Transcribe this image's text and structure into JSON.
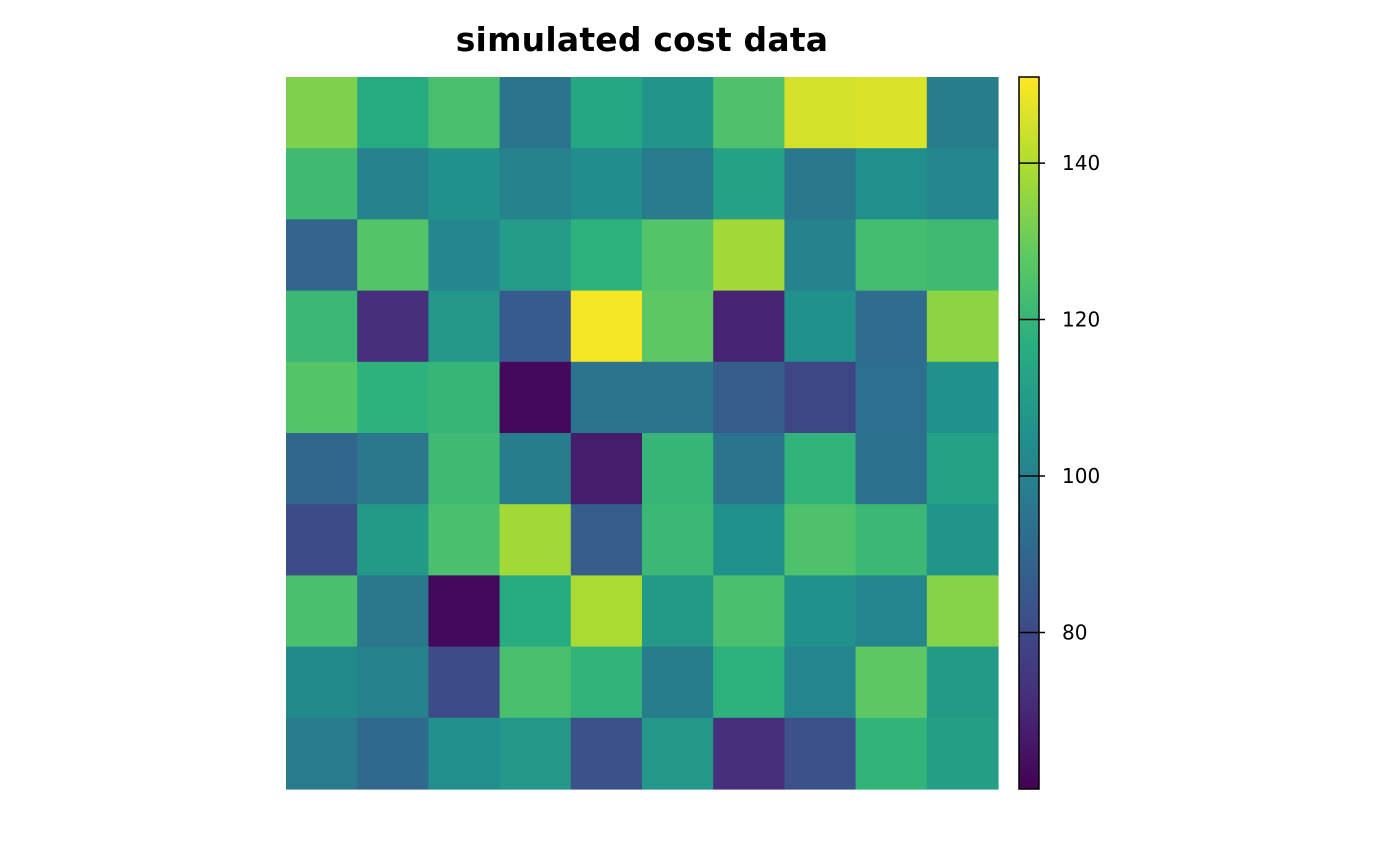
{
  "chart_data": {
    "type": "heatmap",
    "title": "simulated cost data",
    "rows": 10,
    "cols": 10,
    "values": [
      [
        133,
        116,
        124,
        95,
        114,
        107,
        125,
        145,
        146,
        98
      ],
      [
        122,
        100,
        106,
        100,
        104,
        97,
        112,
        96,
        105,
        102
      ],
      [
        89,
        126,
        102,
        110,
        118,
        126,
        138,
        100,
        123,
        122
      ],
      [
        121,
        72,
        108,
        86,
        150,
        128,
        69,
        106,
        92,
        135
      ],
      [
        126,
        118,
        120,
        62,
        95,
        95,
        87,
        79,
        93,
        106
      ],
      [
        90,
        96,
        122,
        98,
        67,
        120,
        95,
        119,
        94,
        112
      ],
      [
        81,
        109,
        124,
        138,
        87,
        121,
        106,
        125,
        121,
        107
      ],
      [
        124,
        96,
        62,
        116,
        139,
        109,
        124,
        106,
        101,
        134
      ],
      [
        103,
        100,
        81,
        124,
        119,
        98,
        118,
        101,
        128,
        109
      ],
      [
        97,
        91,
        105,
        108,
        82,
        108,
        72,
        82,
        119,
        111
      ]
    ],
    "scale": {
      "min": 60,
      "max": 151,
      "palette": "viridis",
      "ticks": [
        80,
        100,
        120,
        140
      ],
      "tick_labels": [
        "80",
        "100",
        "120",
        "140"
      ]
    },
    "xlabel": "",
    "ylabel": "",
    "grid": false,
    "legend": "right"
  },
  "colors": {
    "background": "#ffffff",
    "text": "#000000",
    "viridis_stops": [
      "#440154",
      "#472d7b",
      "#3b528b",
      "#2c728e",
      "#21918c",
      "#28ae80",
      "#5ec962",
      "#addc30",
      "#fde725"
    ]
  }
}
